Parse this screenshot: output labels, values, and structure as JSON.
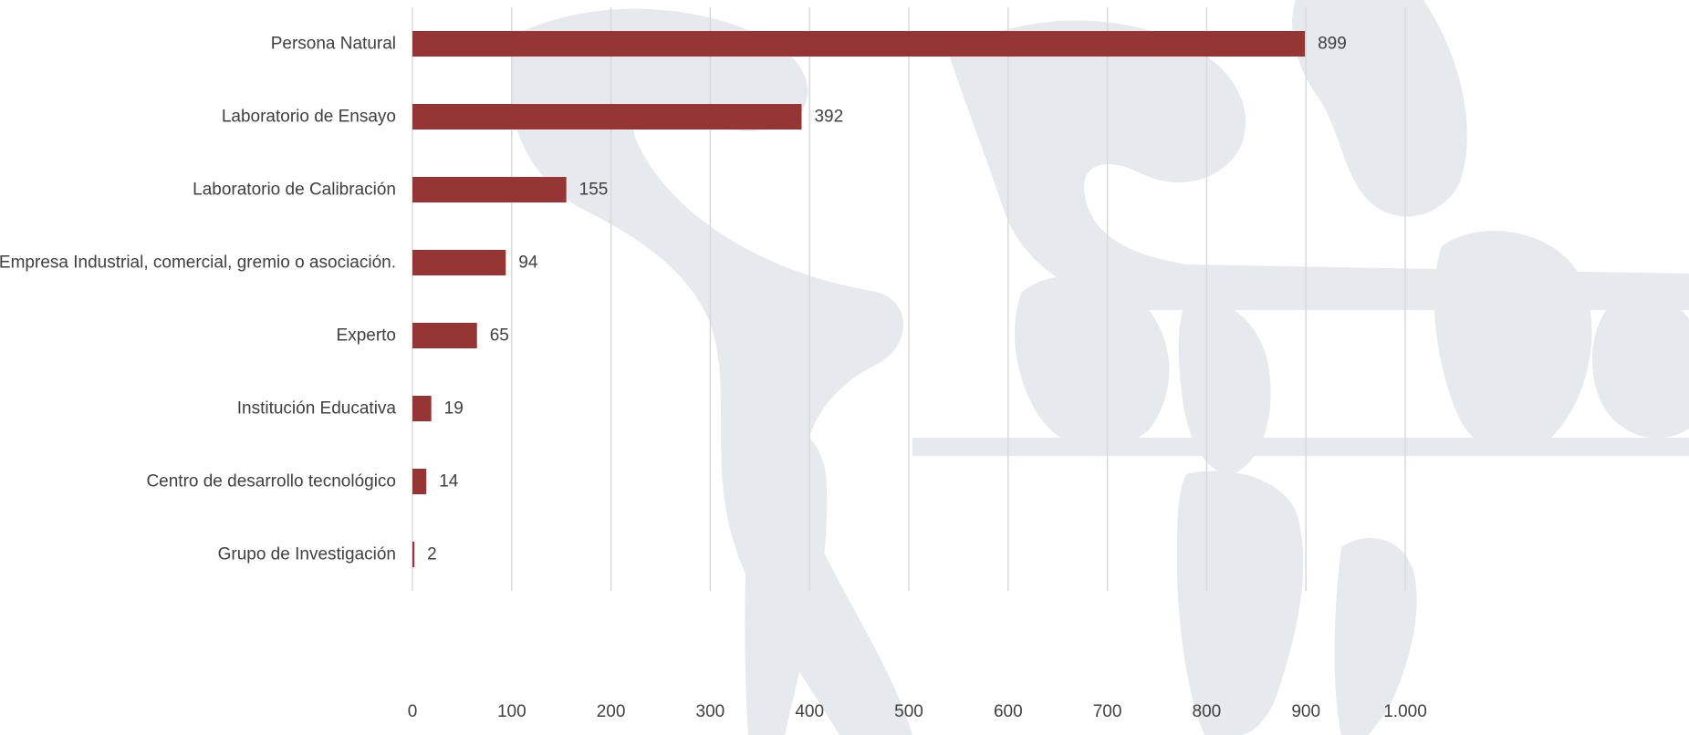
{
  "chart_data": {
    "type": "bar",
    "orientation": "horizontal",
    "categories": [
      "Persona Natural",
      "Laboratorio de Ensayo",
      "Laboratorio de Calibración",
      "Empresa Industrial, comercial, gremio o asociación.",
      "Experto",
      "Institución Educativa",
      "Centro de desarrollo tecnológico",
      "Grupo de Investigación"
    ],
    "values": [
      899,
      392,
      155,
      94,
      65,
      19,
      14,
      2
    ],
    "title": "",
    "xlabel": "",
    "ylabel": "",
    "xlim": [
      0,
      1000
    ],
    "xticks": [
      0,
      100,
      200,
      300,
      400,
      500,
      600,
      700,
      800,
      900,
      1000
    ],
    "xtick_labels": [
      "0",
      "100",
      "200",
      "300",
      "400",
      "500",
      "600",
      "700",
      "800",
      "900",
      "1.000"
    ],
    "data_labels": [
      "899",
      "392",
      "155",
      "94",
      "65",
      "19",
      "14",
      "2"
    ],
    "grid": "vertical",
    "legend": "none",
    "bar_color": "#963634",
    "grid_color": "#d9d9d9",
    "text_color": "#404040",
    "watermark_color": "#e6e9ee",
    "watermark": "coat-of-arms-watermark"
  }
}
